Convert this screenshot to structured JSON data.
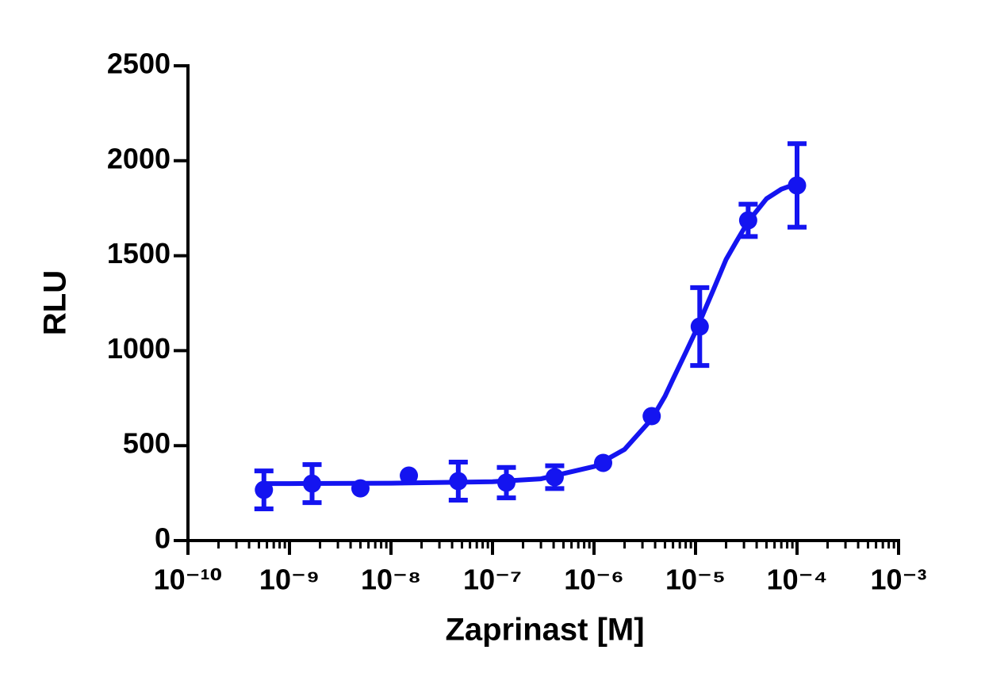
{
  "chart_data": {
    "type": "scatter",
    "x_label": "Zaprinast [M]",
    "y_label": "RLU",
    "x": [
      5.6e-10,
      1.67e-09,
      5e-09,
      1.5e-08,
      4.6e-08,
      1.37e-07,
      4.1e-07,
      1.23e-06,
      3.7e-06,
      1.1e-05,
      3.3e-05,
      0.0001
    ],
    "values": [
      267,
      300,
      275,
      342,
      313,
      305,
      334,
      409,
      655,
      1127,
      1686,
      1870
    ],
    "errors": [
      100,
      100,
      null,
      null,
      100,
      80,
      60,
      null,
      null,
      205,
      85,
      220
    ],
    "fit": {
      "x": [
        5.6e-10,
        1e-09,
        1e-08,
        1e-07,
        3e-07,
        1e-06,
        2e-06,
        3.7e-06,
        5e-06,
        6e-06,
        8e-06,
        1e-05,
        1.5e-05,
        2e-05,
        2.5e-05,
        3.3e-05,
        5e-05,
        7e-05,
        0.0001
      ],
      "values": [
        300,
        300,
        302,
        310,
        325,
        390,
        480,
        640,
        760,
        850,
        990,
        1100,
        1320,
        1480,
        1570,
        1680,
        1800,
        1850,
        1880
      ]
    },
    "color": "#1414f0",
    "xscale": "log",
    "x_minor_ticks": true,
    "xlim": [
      1e-10,
      0.001
    ],
    "xticks": [
      {
        "value": 1e-10,
        "label": "10⁻¹⁰"
      },
      {
        "value": 1e-09,
        "label": "10⁻⁹"
      },
      {
        "value": 1e-08,
        "label": "10⁻⁸"
      },
      {
        "value": 1e-07,
        "label": "10⁻⁷"
      },
      {
        "value": 1e-06,
        "label": "10⁻⁶"
      },
      {
        "value": 1e-05,
        "label": "10⁻⁵"
      },
      {
        "value": 0.0001,
        "label": "10⁻⁴"
      },
      {
        "value": 0.001,
        "label": "10⁻³"
      }
    ],
    "ylim": [
      0,
      2500
    ],
    "yticks": [
      0,
      500,
      1000,
      1500,
      2000,
      2500
    ]
  }
}
